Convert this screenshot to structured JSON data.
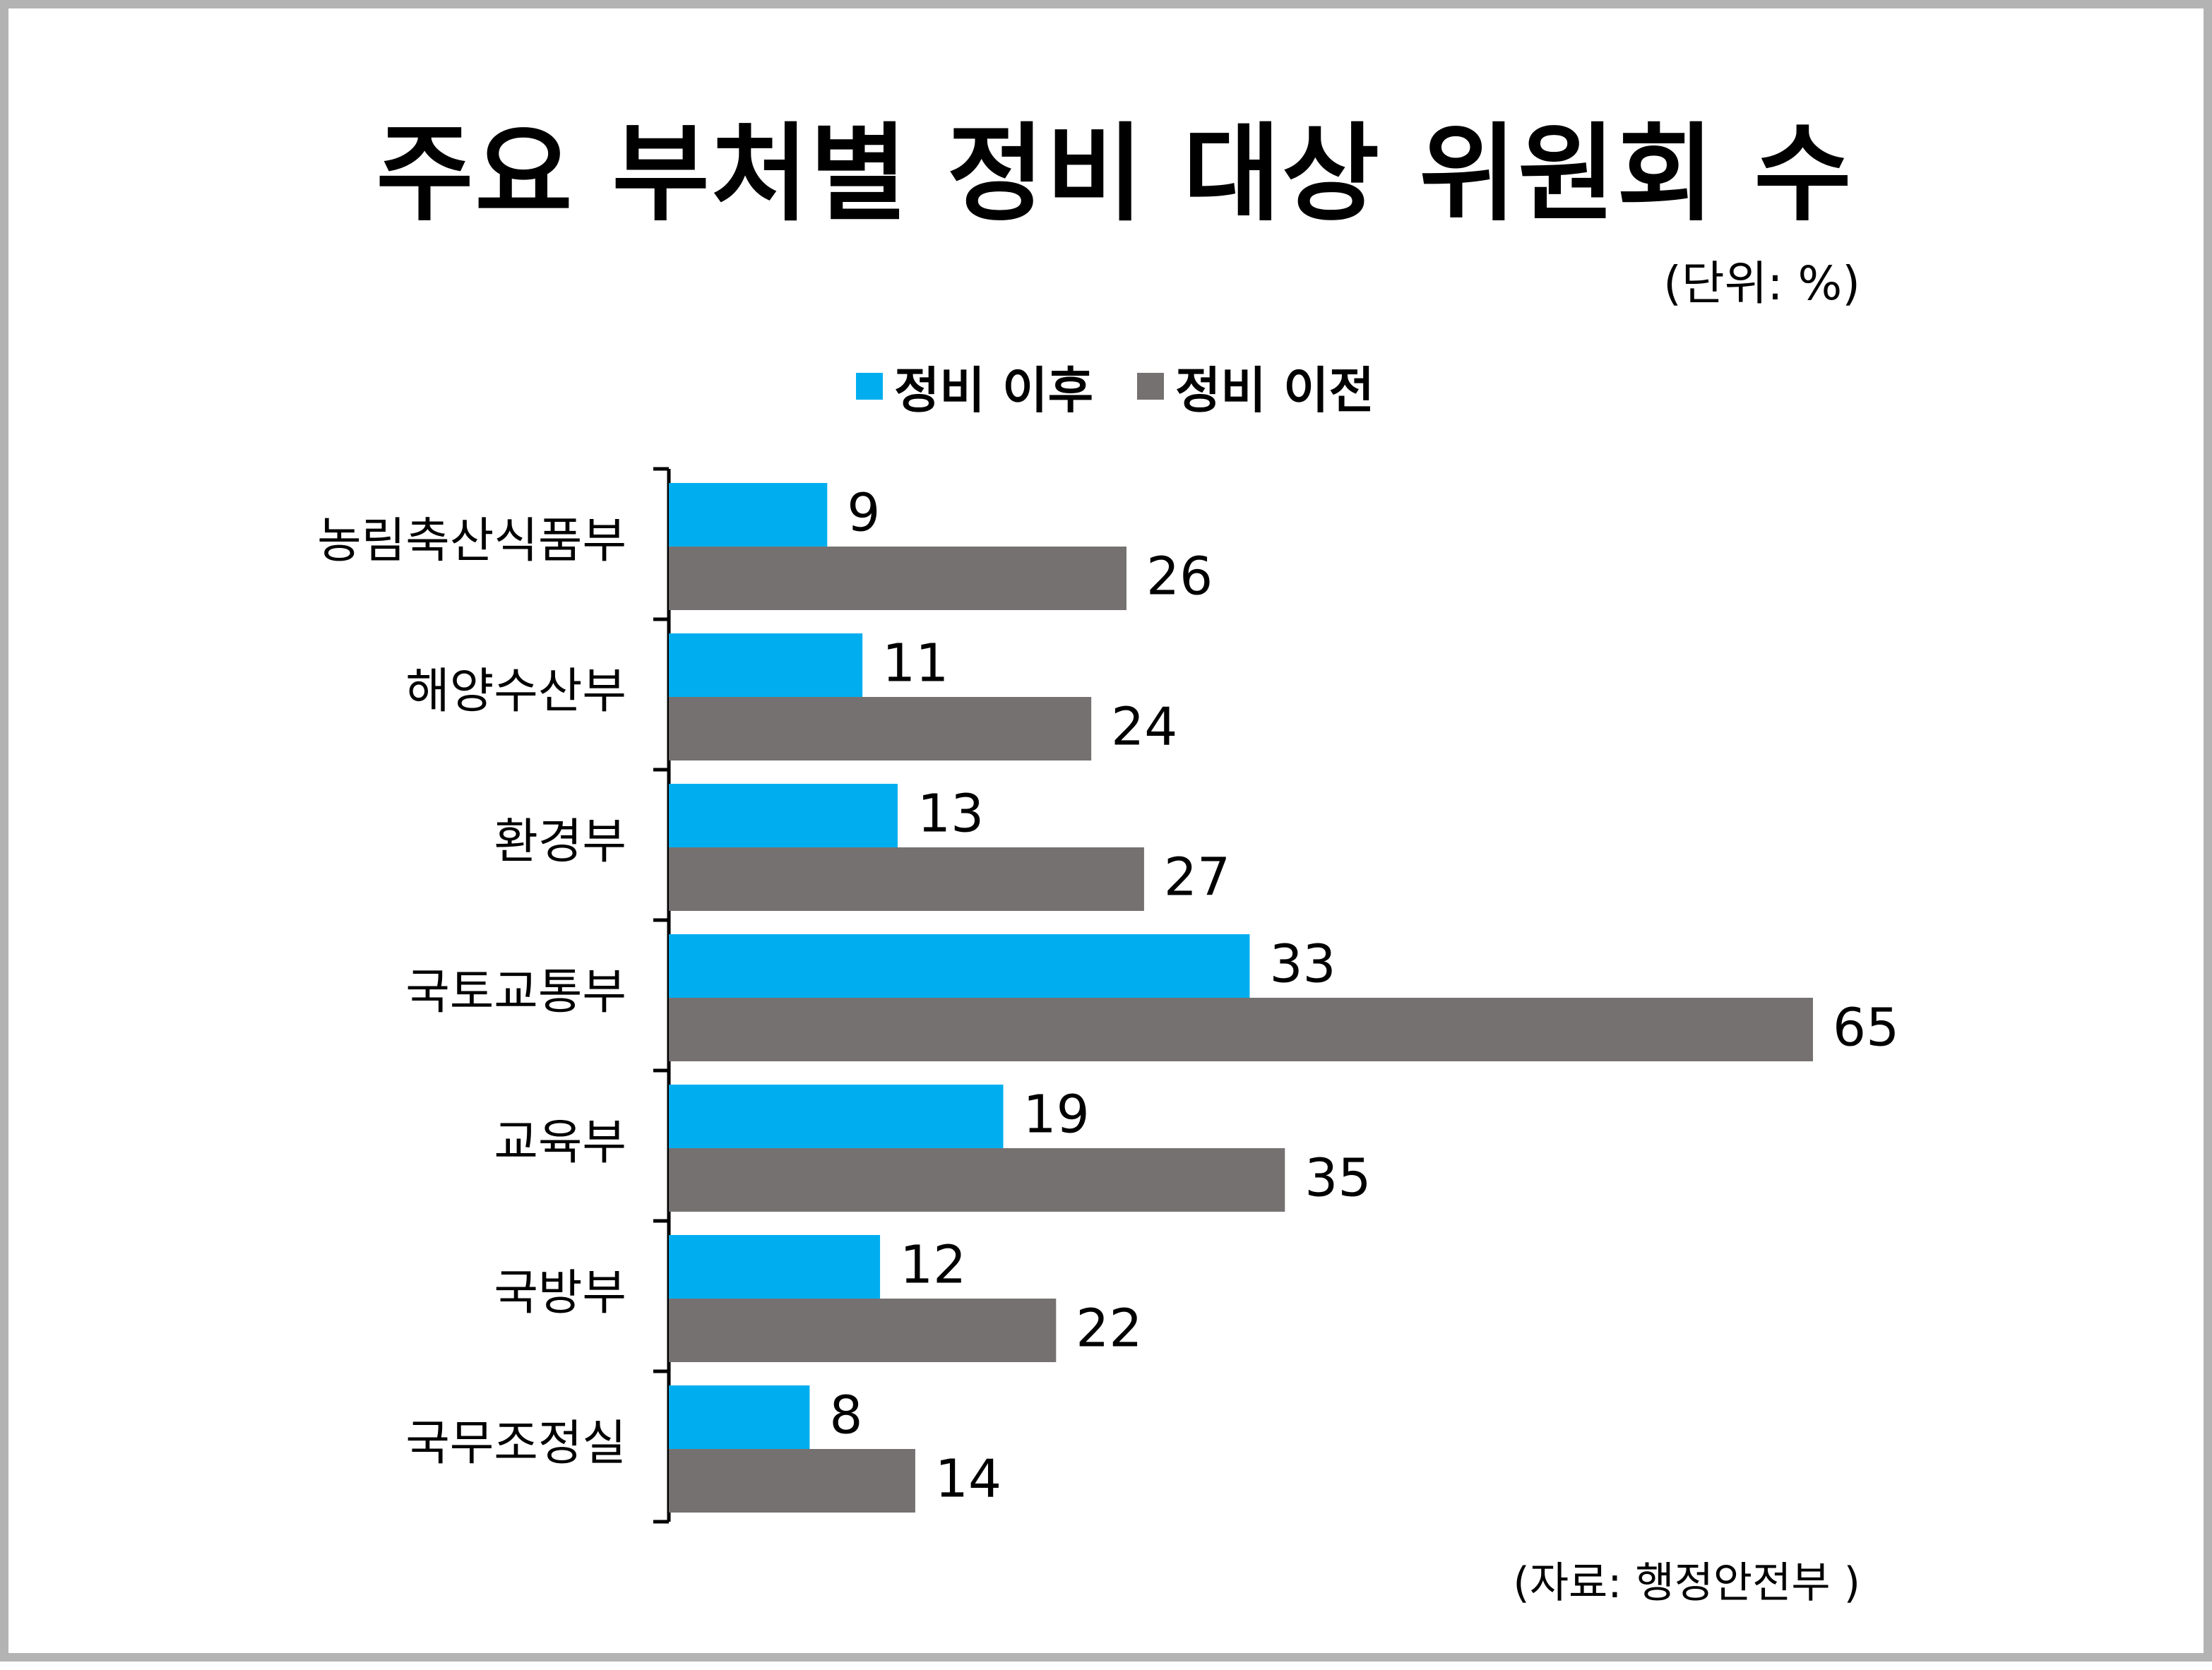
{
  "title": "주요 부처별 정비 대상 위원회 수",
  "unit_note": "(단위: %)",
  "source_note": "(자료: 행정안전부 )",
  "colors": {
    "after": "#00aeef",
    "before": "#767171",
    "axis": "#000000"
  },
  "chart_data": {
    "type": "bar",
    "orientation": "horizontal",
    "categories": [
      "농림축산식품부",
      "해양수산부",
      "환경부",
      "국토교통부",
      "교육부",
      "국방부",
      "국무조정실"
    ],
    "series": [
      {
        "name": "정비 이후",
        "values": [
          9,
          11,
          13,
          33,
          19,
          12,
          8
        ]
      },
      {
        "name": "정비 이전",
        "values": [
          26,
          24,
          27,
          65,
          35,
          22,
          14
        ]
      }
    ],
    "xlim": [
      0,
      65
    ],
    "legend": "top-center",
    "grid": false,
    "data_labels": true
  }
}
